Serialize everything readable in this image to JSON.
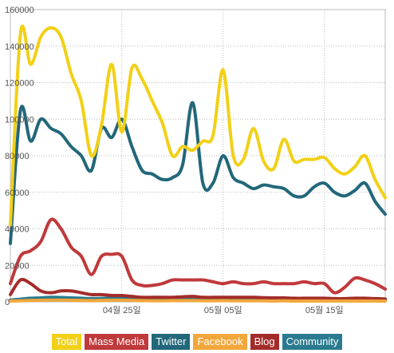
{
  "chart_data": {
    "type": "line",
    "title": "",
    "xlabel": "",
    "ylabel": "",
    "ylim": [
      0,
      160000
    ],
    "yticks": [
      0,
      20000,
      40000,
      60000,
      80000,
      100000,
      120000,
      140000,
      160000
    ],
    "ytick_labels": [
      "0",
      "20000",
      "40000",
      "60000",
      "80000",
      "100000",
      "120000",
      "140000",
      "160000"
    ],
    "x": [
      "04-14",
      "04-15",
      "04-16",
      "04-17",
      "04-18",
      "04-19",
      "04-20",
      "04-21",
      "04-22",
      "04-23",
      "04-24",
      "04-25",
      "04-26",
      "04-27",
      "04-28",
      "04-29",
      "04-30",
      "05-01",
      "05-02",
      "05-03",
      "05-04",
      "05-05",
      "05-06",
      "05-07",
      "05-08",
      "05-09",
      "05-10",
      "05-11",
      "05-12",
      "05-13",
      "05-14",
      "05-15",
      "05-16",
      "05-17",
      "05-18",
      "05-19",
      "05-20",
      "05-21"
    ],
    "xticks": [
      {
        "index": 11,
        "label": "04월 25일"
      },
      {
        "index": 21,
        "label": "05월 05일"
      },
      {
        "index": 31,
        "label": "05월 15일"
      }
    ],
    "grid": true,
    "legend_position": "bottom",
    "series": [
      {
        "name": "Total",
        "color": "#f2d016",
        "values": [
          42000,
          147000,
          130000,
          145000,
          150000,
          145000,
          125000,
          110000,
          80000,
          97000,
          130000,
          93000,
          128000,
          122000,
          110000,
          98000,
          80000,
          85000,
          83000,
          88000,
          91000,
          127000,
          80000,
          78000,
          95000,
          77000,
          73000,
          89000,
          77000,
          78000,
          78000,
          79000,
          73000,
          70000,
          74000,
          80000,
          67000,
          57000
        ]
      },
      {
        "name": "Mass Media",
        "color": "#c0393b",
        "values": [
          10000,
          25000,
          28000,
          33000,
          45000,
          40000,
          30000,
          25000,
          15000,
          25000,
          26000,
          25000,
          12000,
          9000,
          9000,
          10000,
          12000,
          12000,
          12000,
          12000,
          11000,
          10000,
          11000,
          10000,
          10000,
          11000,
          10000,
          10000,
          10000,
          11000,
          10000,
          10000,
          5000,
          8000,
          13000,
          12000,
          10000,
          7000
        ]
      },
      {
        "name": "Twitter",
        "color": "#22677a",
        "values": [
          32000,
          105000,
          88000,
          100000,
          95000,
          92000,
          85000,
          80000,
          72000,
          95000,
          90000,
          100000,
          85000,
          72000,
          70000,
          67000,
          68000,
          75000,
          109000,
          65000,
          65000,
          80000,
          68000,
          65000,
          62000,
          64000,
          63000,
          62000,
          58000,
          58000,
          63000,
          65000,
          60000,
          58000,
          61000,
          65000,
          55000,
          48000
        ]
      },
      {
        "name": "Facebook",
        "color": "#f2a73a",
        "values": [
          500,
          600,
          800,
          900,
          1000,
          1000,
          900,
          800,
          700,
          800,
          900,
          900,
          800,
          700,
          600,
          600,
          700,
          700,
          700,
          600,
          600,
          700,
          600,
          600,
          600,
          600,
          500,
          600,
          500,
          500,
          500,
          500,
          500,
          500,
          500,
          500,
          500,
          400
        ]
      },
      {
        "name": "Blog",
        "color": "#a32c2a",
        "values": [
          4000,
          12000,
          10000,
          6000,
          5000,
          6000,
          6000,
          5000,
          4000,
          4000,
          3500,
          3500,
          3000,
          2500,
          2500,
          2500,
          2500,
          2800,
          3000,
          2500,
          2500,
          2500,
          2500,
          2500,
          2500,
          2300,
          2200,
          2200,
          2000,
          2000,
          2000,
          2000,
          1800,
          1800,
          2000,
          2000,
          1800,
          1600
        ]
      },
      {
        "name": "Community",
        "color": "#2a7b8f",
        "values": [
          1000,
          1500,
          2000,
          2200,
          2500,
          2400,
          2200,
          2000,
          1800,
          1900,
          2000,
          2000,
          1800,
          1600,
          1500,
          1500,
          1500,
          1500,
          1500,
          1400,
          1400,
          1300,
          1300,
          1300,
          1200,
          1200,
          1200,
          1200,
          1100,
          1100,
          1100,
          1100,
          1000,
          1000,
          1000,
          1000,
          1000,
          900
        ]
      }
    ]
  }
}
